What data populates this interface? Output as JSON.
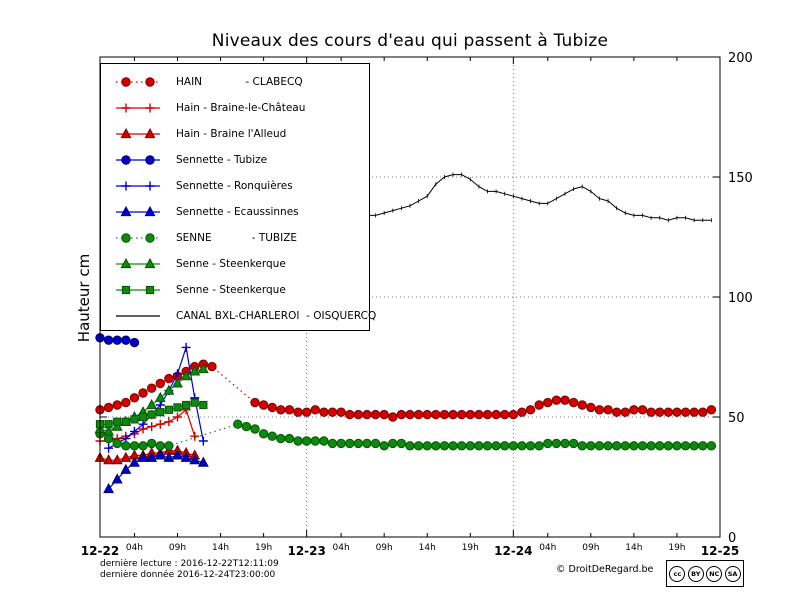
{
  "title": "Niveaux des cours d'eau qui passent à Tubize",
  "y_label": "Hauteur cm",
  "footer": {
    "last_reading": "dernière lecture : 2016-12-22T12:11:09",
    "last_data": "dernière donnée  2016-12-24T23:00:00",
    "copyright": "© DroitDeRegard.be",
    "license_icons": [
      "cc",
      "BY",
      "NC",
      "SA"
    ]
  },
  "chart_data": {
    "type": "line",
    "title": "Niveaux des cours d'eau qui passent à Tubize",
    "xlabel": "",
    "ylabel": "Hauteur cm",
    "ylim": [
      0,
      200
    ],
    "y_ticks": [
      0,
      50,
      100,
      150,
      200
    ],
    "x_range_hours": [
      0,
      72
    ],
    "x_days": [
      {
        "label": "12-22",
        "hour": 0
      },
      {
        "label": "12-23",
        "hour": 24
      },
      {
        "label": "12-24",
        "hour": 48
      },
      {
        "label": "12-25",
        "hour": 72
      }
    ],
    "x_hour_ticks": [
      {
        "label": "04h",
        "hour": 4
      },
      {
        "label": "09h",
        "hour": 9
      },
      {
        "label": "14h",
        "hour": 14
      },
      {
        "label": "19h",
        "hour": 19
      },
      {
        "label": "04h",
        "hour": 28
      },
      {
        "label": "09h",
        "hour": 33
      },
      {
        "label": "14h",
        "hour": 38
      },
      {
        "label": "19h",
        "hour": 43
      },
      {
        "label": "04h",
        "hour": 52
      },
      {
        "label": "09h",
        "hour": 57
      },
      {
        "label": "14h",
        "hour": 62
      },
      {
        "label": "19h",
        "hour": 67
      }
    ],
    "grid": {
      "h_lines": [
        50,
        100,
        150
      ],
      "v_lines": [
        24,
        48
      ]
    },
    "legend_position": "top-left",
    "series": [
      {
        "label": "HAIN             - CLABECQ",
        "color": "#d40000",
        "edge": "#7a0000",
        "marker": "circle",
        "line": "dotted",
        "points": [
          [
            0,
            53
          ],
          [
            1,
            54
          ],
          [
            2,
            55
          ],
          [
            3,
            56
          ],
          [
            4,
            58
          ],
          [
            5,
            60
          ],
          [
            6,
            62
          ],
          [
            7,
            64
          ],
          [
            8,
            66
          ],
          [
            9,
            67
          ],
          [
            10,
            69
          ],
          [
            11,
            71
          ],
          [
            12,
            72
          ],
          [
            13,
            71
          ],
          [
            18,
            56
          ],
          [
            19,
            55
          ],
          [
            20,
            54
          ],
          [
            21,
            53
          ],
          [
            22,
            53
          ],
          [
            23,
            52
          ],
          [
            24,
            52
          ],
          [
            25,
            53
          ],
          [
            26,
            52
          ],
          [
            27,
            52
          ],
          [
            28,
            52
          ],
          [
            29,
            51
          ],
          [
            30,
            51
          ],
          [
            31,
            51
          ],
          [
            32,
            51
          ],
          [
            33,
            51
          ],
          [
            34,
            50
          ],
          [
            35,
            51
          ],
          [
            36,
            51
          ],
          [
            37,
            51
          ],
          [
            38,
            51
          ],
          [
            39,
            51
          ],
          [
            40,
            51
          ],
          [
            41,
            51
          ],
          [
            42,
            51
          ],
          [
            43,
            51
          ],
          [
            44,
            51
          ],
          [
            45,
            51
          ],
          [
            46,
            51
          ],
          [
            47,
            51
          ],
          [
            48,
            51
          ],
          [
            49,
            52
          ],
          [
            50,
            53
          ],
          [
            51,
            55
          ],
          [
            52,
            56
          ],
          [
            53,
            57
          ],
          [
            54,
            57
          ],
          [
            55,
            56
          ],
          [
            56,
            55
          ],
          [
            57,
            54
          ],
          [
            58,
            53
          ],
          [
            59,
            53
          ],
          [
            60,
            52
          ],
          [
            61,
            52
          ],
          [
            62,
            53
          ],
          [
            63,
            53
          ],
          [
            64,
            52
          ],
          [
            65,
            52
          ],
          [
            66,
            52
          ],
          [
            67,
            52
          ],
          [
            68,
            52
          ],
          [
            69,
            52
          ],
          [
            70,
            52
          ],
          [
            71,
            53
          ]
        ]
      },
      {
        "label": "Hain - Braine-le-Château",
        "color": "#d40000",
        "edge": "#7a0000",
        "marker": "plus",
        "line": "solid",
        "points": [
          [
            0,
            40
          ],
          [
            1,
            40
          ],
          [
            2,
            41
          ],
          [
            3,
            42
          ],
          [
            4,
            43
          ],
          [
            5,
            45
          ],
          [
            6,
            46
          ],
          [
            7,
            47
          ],
          [
            8,
            48
          ],
          [
            9,
            50
          ],
          [
            10,
            53
          ],
          [
            11,
            42
          ]
        ]
      },
      {
        "label": "Hain - Braine l'Alleud",
        "color": "#d40000",
        "edge": "#7a0000",
        "marker": "triangle",
        "line": "solid",
        "points": [
          [
            0,
            33
          ],
          [
            1,
            32
          ],
          [
            2,
            32
          ],
          [
            3,
            33
          ],
          [
            4,
            34
          ],
          [
            5,
            34
          ],
          [
            6,
            35
          ],
          [
            7,
            35
          ],
          [
            8,
            36
          ],
          [
            9,
            36
          ],
          [
            10,
            35
          ],
          [
            11,
            34
          ]
        ]
      },
      {
        "label": "Sennette - Tubize",
        "color": "#0000cd",
        "edge": "#00006b",
        "marker": "circle",
        "line": "solid",
        "points": [
          [
            0,
            83
          ],
          [
            1,
            82
          ],
          [
            2,
            82
          ],
          [
            3,
            82
          ],
          [
            4,
            81
          ]
        ]
      },
      {
        "label": "Sennette - Ronquières",
        "color": "#0000cd",
        "edge": "#00006b",
        "marker": "plus",
        "line": "solid",
        "points": [
          [
            1,
            37
          ],
          [
            2,
            39
          ],
          [
            3,
            41
          ],
          [
            4,
            44
          ],
          [
            5,
            47
          ],
          [
            6,
            51
          ],
          [
            7,
            55
          ],
          [
            8,
            61
          ],
          [
            9,
            68
          ],
          [
            10,
            79
          ],
          [
            11,
            58
          ],
          [
            12,
            40
          ]
        ]
      },
      {
        "label": "Sennette - Ecaussinnes",
        "color": "#0000cd",
        "edge": "#00006b",
        "marker": "triangle",
        "line": "solid",
        "points": [
          [
            1,
            20
          ],
          [
            2,
            24
          ],
          [
            3,
            28
          ],
          [
            4,
            31
          ],
          [
            5,
            33
          ],
          [
            6,
            33
          ],
          [
            7,
            34
          ],
          [
            8,
            33
          ],
          [
            9,
            34
          ],
          [
            10,
            33
          ],
          [
            11,
            32
          ],
          [
            12,
            31
          ]
        ]
      },
      {
        "label": "SENNE            - TUBIZE",
        "color": "#0d8a0d",
        "edge": "#035403",
        "marker": "circle",
        "line": "dotted",
        "points": [
          [
            0,
            43
          ],
          [
            1,
            41
          ],
          [
            2,
            39
          ],
          [
            3,
            38
          ],
          [
            4,
            38
          ],
          [
            5,
            38
          ],
          [
            6,
            39
          ],
          [
            7,
            38
          ],
          [
            8,
            38
          ],
          [
            16,
            47
          ],
          [
            17,
            46
          ],
          [
            18,
            45
          ],
          [
            19,
            43
          ],
          [
            20,
            42
          ],
          [
            21,
            41
          ],
          [
            22,
            41
          ],
          [
            23,
            40
          ],
          [
            24,
            40
          ],
          [
            25,
            40
          ],
          [
            26,
            40
          ],
          [
            27,
            39
          ],
          [
            28,
            39
          ],
          [
            29,
            39
          ],
          [
            30,
            39
          ],
          [
            31,
            39
          ],
          [
            32,
            39
          ],
          [
            33,
            38
          ],
          [
            34,
            39
          ],
          [
            35,
            39
          ],
          [
            36,
            38
          ],
          [
            37,
            38
          ],
          [
            38,
            38
          ],
          [
            39,
            38
          ],
          [
            40,
            38
          ],
          [
            41,
            38
          ],
          [
            42,
            38
          ],
          [
            43,
            38
          ],
          [
            44,
            38
          ],
          [
            45,
            38
          ],
          [
            46,
            38
          ],
          [
            47,
            38
          ],
          [
            48,
            38
          ],
          [
            49,
            38
          ],
          [
            50,
            38
          ],
          [
            51,
            38
          ],
          [
            52,
            39
          ],
          [
            53,
            39
          ],
          [
            54,
            39
          ],
          [
            55,
            39
          ],
          [
            56,
            38
          ],
          [
            57,
            38
          ],
          [
            58,
            38
          ],
          [
            59,
            38
          ],
          [
            60,
            38
          ],
          [
            61,
            38
          ],
          [
            62,
            38
          ],
          [
            63,
            38
          ],
          [
            64,
            38
          ],
          [
            65,
            38
          ],
          [
            66,
            38
          ],
          [
            67,
            38
          ],
          [
            68,
            38
          ],
          [
            69,
            38
          ],
          [
            70,
            38
          ],
          [
            71,
            38
          ]
        ]
      },
      {
        "label": "Senne - Steenkerque",
        "color": "#0d8a0d",
        "edge": "#035403",
        "marker": "triangle",
        "line": "solid",
        "points": [
          [
            0,
            45
          ],
          [
            1,
            44
          ],
          [
            2,
            46
          ],
          [
            3,
            48
          ],
          [
            4,
            50
          ],
          [
            5,
            52
          ],
          [
            6,
            55
          ],
          [
            7,
            58
          ],
          [
            8,
            61
          ],
          [
            9,
            64
          ],
          [
            10,
            67
          ],
          [
            11,
            69
          ],
          [
            12,
            70
          ]
        ]
      },
      {
        "label": "Senne - Steenkerque",
        "color": "#0d8a0d",
        "edge": "#035403",
        "marker": "square",
        "line": "solid",
        "points": [
          [
            0,
            47
          ],
          [
            1,
            47
          ],
          [
            2,
            48
          ],
          [
            3,
            48
          ],
          [
            4,
            49
          ],
          [
            5,
            50
          ],
          [
            6,
            51
          ],
          [
            7,
            52
          ],
          [
            8,
            53
          ],
          [
            9,
            54
          ],
          [
            10,
            55
          ],
          [
            11,
            56
          ],
          [
            12,
            55
          ]
        ]
      },
      {
        "label": "CANAL BXL-CHARLEROI  - OISQUERCQ",
        "color": "#000000",
        "edge": "#000000",
        "marker": "tick",
        "line": "solid",
        "points": [
          [
            0,
            141
          ],
          [
            1,
            140
          ],
          [
            2,
            139
          ],
          [
            31,
            134
          ],
          [
            32,
            134
          ],
          [
            33,
            135
          ],
          [
            34,
            136
          ],
          [
            35,
            137
          ],
          [
            36,
            138
          ],
          [
            37,
            140
          ],
          [
            38,
            142
          ],
          [
            39,
            147
          ],
          [
            40,
            150
          ],
          [
            41,
            151
          ],
          [
            42,
            151
          ],
          [
            43,
            149
          ],
          [
            44,
            146
          ],
          [
            45,
            144
          ],
          [
            46,
            144
          ],
          [
            47,
            143
          ],
          [
            48,
            142
          ],
          [
            49,
            141
          ],
          [
            50,
            140
          ],
          [
            51,
            139
          ],
          [
            52,
            139
          ],
          [
            53,
            141
          ],
          [
            54,
            143
          ],
          [
            55,
            145
          ],
          [
            56,
            146
          ],
          [
            57,
            144
          ],
          [
            58,
            141
          ],
          [
            59,
            140
          ],
          [
            60,
            137
          ],
          [
            61,
            135
          ],
          [
            62,
            134
          ],
          [
            63,
            134
          ],
          [
            64,
            133
          ],
          [
            65,
            133
          ],
          [
            66,
            132
          ],
          [
            67,
            133
          ],
          [
            68,
            133
          ],
          [
            69,
            132
          ],
          [
            70,
            132
          ],
          [
            71,
            132
          ]
        ]
      }
    ]
  }
}
